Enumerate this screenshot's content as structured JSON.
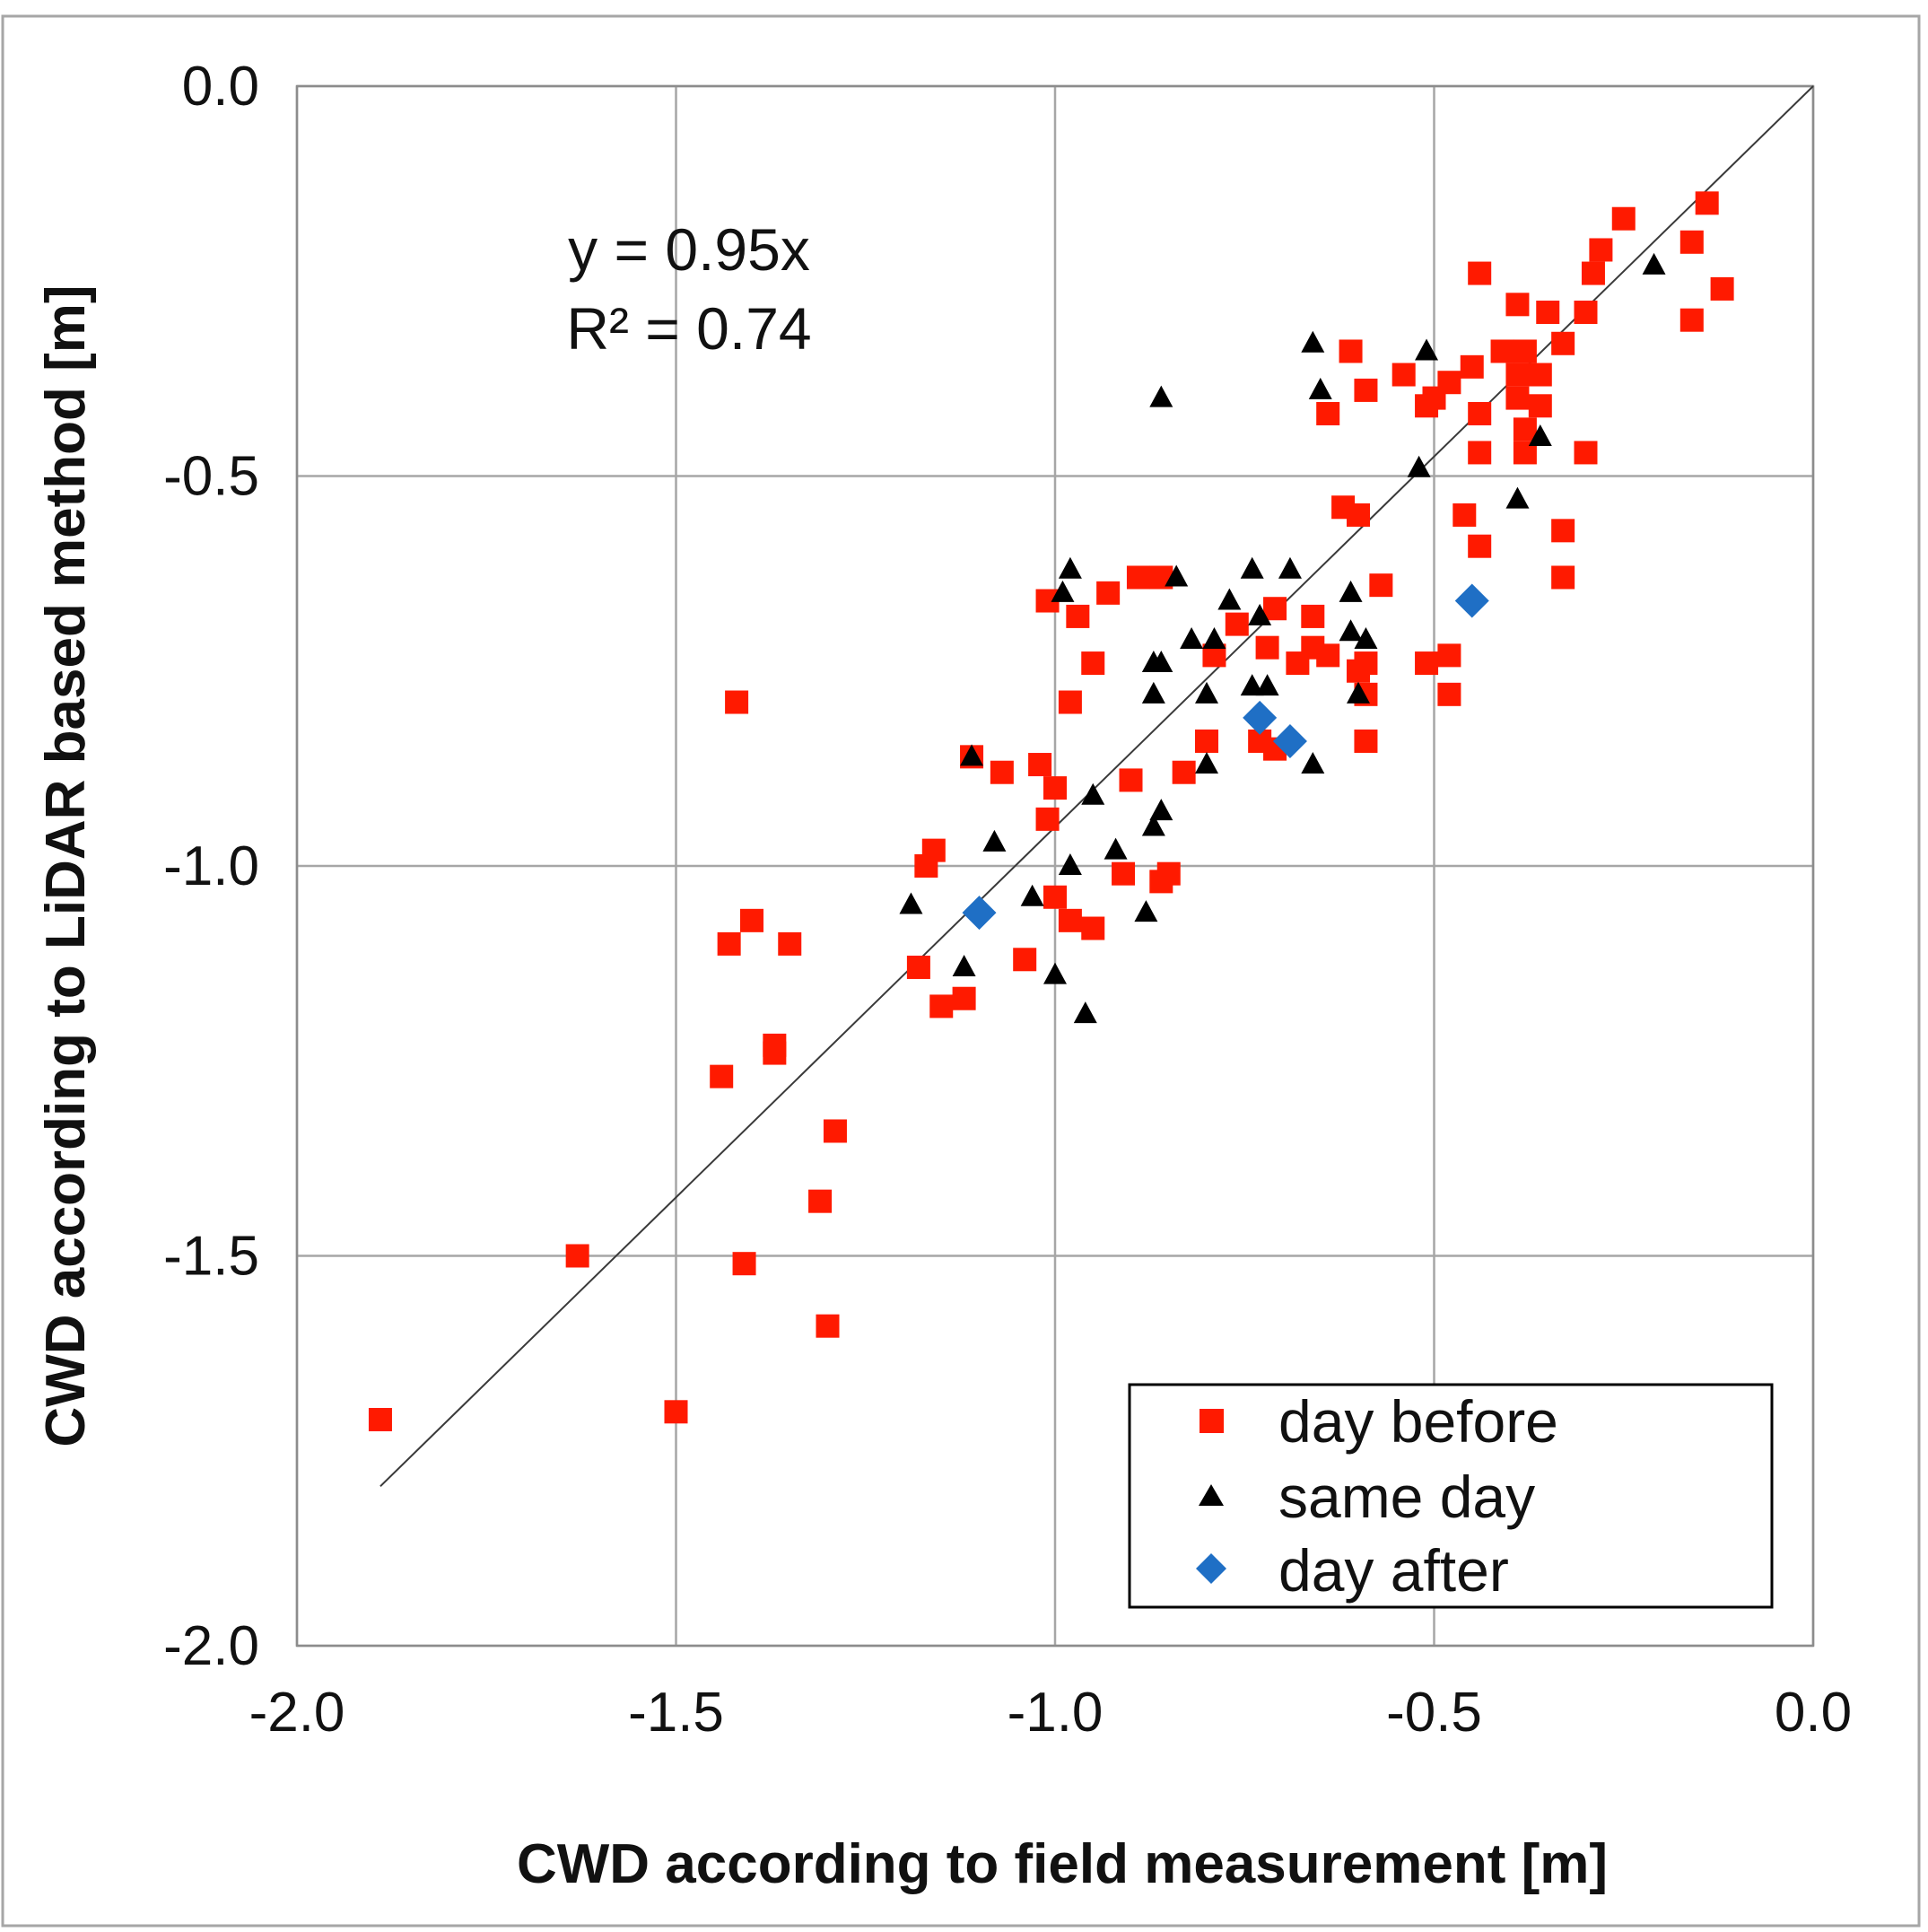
{
  "chart_data": {
    "type": "scatter",
    "xlabel": "CWD according to field measurement [m]",
    "ylabel": "CWD according to LiDAR based method [m]",
    "xlim": [
      -2.0,
      0.0
    ],
    "ylim": [
      -2.0,
      0.0
    ],
    "xticks": [
      "-2.0",
      "-1.5",
      "-1.0",
      "-0.5",
      "0.0"
    ],
    "yticks": [
      "0.0",
      "-0.5",
      "-1.0",
      "-1.5",
      "-2.0"
    ],
    "grid": true,
    "legend_position": "bottom-right",
    "annotation": {
      "equation": "y = 0.95x",
      "r2": "R² = 0.74"
    },
    "trendline": {
      "slope": 0.95,
      "x_range": [
        -1.89,
        0.0
      ]
    },
    "series": [
      {
        "name": "day before",
        "marker": "square",
        "color": "#ff1a00",
        "points": [
          [
            -1.89,
            -1.71
          ],
          [
            -1.63,
            -1.5
          ],
          [
            -1.5,
            -1.7
          ],
          [
            -1.42,
            -0.79
          ],
          [
            -1.43,
            -1.1
          ],
          [
            -1.4,
            -1.07
          ],
          [
            -1.35,
            -1.1
          ],
          [
            -1.37,
            -1.23
          ],
          [
            -1.37,
            -1.24
          ],
          [
            -1.44,
            -1.27
          ],
          [
            -1.41,
            -1.51
          ],
          [
            -1.31,
            -1.43
          ],
          [
            -1.3,
            -1.59
          ],
          [
            -1.29,
            -1.34
          ],
          [
            -1.18,
            -1.13
          ],
          [
            -1.17,
            -1.0
          ],
          [
            -1.16,
            -0.98
          ],
          [
            -1.15,
            -1.18
          ],
          [
            -1.12,
            -1.17
          ],
          [
            -1.11,
            -0.86
          ],
          [
            -1.07,
            -0.88
          ],
          [
            -1.04,
            -1.12
          ],
          [
            -1.02,
            -0.87
          ],
          [
            -1.01,
            -0.94
          ],
          [
            -1.0,
            -0.9
          ],
          [
            -1.0,
            -1.04
          ],
          [
            -1.01,
            -0.66
          ],
          [
            -0.98,
            -1.07
          ],
          [
            -0.98,
            -0.79
          ],
          [
            -0.97,
            -0.68
          ],
          [
            -0.95,
            -1.08
          ],
          [
            -0.95,
            -0.74
          ],
          [
            -0.93,
            -0.65
          ],
          [
            -0.91,
            -1.01
          ],
          [
            -0.9,
            -0.89
          ],
          [
            -0.89,
            -0.63
          ],
          [
            -0.86,
            -1.02
          ],
          [
            -0.85,
            -1.01
          ],
          [
            -0.86,
            -0.63
          ],
          [
            -0.83,
            -0.88
          ],
          [
            -0.8,
            -0.84
          ],
          [
            -0.79,
            -0.73
          ],
          [
            -0.76,
            -0.69
          ],
          [
            -0.73,
            -0.84
          ],
          [
            -0.71,
            -0.85
          ],
          [
            -0.72,
            -0.72
          ],
          [
            -0.71,
            -0.67
          ],
          [
            -0.68,
            -0.74
          ],
          [
            -0.66,
            -0.72
          ],
          [
            -0.66,
            -0.68
          ],
          [
            -0.64,
            -0.73
          ],
          [
            -0.64,
            -0.42
          ],
          [
            -0.62,
            -0.54
          ],
          [
            -0.6,
            -0.55
          ],
          [
            -0.61,
            -0.34
          ],
          [
            -0.59,
            -0.39
          ],
          [
            -0.6,
            -0.75
          ],
          [
            -0.59,
            -0.74
          ],
          [
            -0.59,
            -0.78
          ],
          [
            -0.59,
            -0.84
          ],
          [
            -0.57,
            -0.64
          ],
          [
            -0.54,
            -0.37
          ],
          [
            -0.51,
            -0.41
          ],
          [
            -0.5,
            -0.4
          ],
          [
            -0.48,
            -0.38
          ],
          [
            -0.51,
            -0.74
          ],
          [
            -0.48,
            -0.73
          ],
          [
            -0.48,
            -0.78
          ],
          [
            -0.46,
            -0.55
          ],
          [
            -0.45,
            -0.36
          ],
          [
            -0.44,
            -0.59
          ],
          [
            -0.44,
            -0.42
          ],
          [
            -0.44,
            -0.47
          ],
          [
            -0.44,
            -0.24
          ],
          [
            -0.41,
            -0.34
          ],
          [
            -0.39,
            -0.37
          ],
          [
            -0.39,
            -0.4
          ],
          [
            -0.39,
            -0.28
          ],
          [
            -0.38,
            -0.34
          ],
          [
            -0.38,
            -0.44
          ],
          [
            -0.38,
            -0.47
          ],
          [
            -0.36,
            -0.37
          ],
          [
            -0.36,
            -0.41
          ],
          [
            -0.35,
            -0.29
          ],
          [
            -0.33,
            -0.33
          ],
          [
            -0.33,
            -0.57
          ],
          [
            -0.33,
            -0.63
          ],
          [
            -0.3,
            -0.29
          ],
          [
            -0.3,
            -0.47
          ],
          [
            -0.29,
            -0.24
          ],
          [
            -0.28,
            -0.21
          ],
          [
            -0.25,
            -0.17
          ],
          [
            -0.16,
            -0.2
          ],
          [
            -0.16,
            -0.3
          ],
          [
            -0.14,
            -0.15
          ],
          [
            -0.12,
            -0.26
          ]
        ]
      },
      {
        "name": "same day",
        "marker": "triangle",
        "color": "#000000",
        "points": [
          [
            -1.19,
            -1.05
          ],
          [
            -1.12,
            -1.13
          ],
          [
            -1.11,
            -0.86
          ],
          [
            -1.08,
            -0.97
          ],
          [
            -1.03,
            -1.04
          ],
          [
            -1.0,
            -1.14
          ],
          [
            -0.99,
            -0.65
          ],
          [
            -0.98,
            -0.62
          ],
          [
            -0.98,
            -1.0
          ],
          [
            -0.96,
            -1.19
          ],
          [
            -0.95,
            -0.91
          ],
          [
            -0.92,
            -0.98
          ],
          [
            -0.88,
            -1.06
          ],
          [
            -0.87,
            -0.95
          ],
          [
            -0.86,
            -0.93
          ],
          [
            -0.87,
            -0.74
          ],
          [
            -0.86,
            -0.74
          ],
          [
            -0.86,
            -0.4
          ],
          [
            -0.87,
            -0.78
          ],
          [
            -0.84,
            -0.63
          ],
          [
            -0.82,
            -0.71
          ],
          [
            -0.79,
            -0.71
          ],
          [
            -0.8,
            -0.78
          ],
          [
            -0.8,
            -0.87
          ],
          [
            -0.77,
            -0.66
          ],
          [
            -0.74,
            -0.62
          ],
          [
            -0.74,
            -0.77
          ],
          [
            -0.73,
            -0.68
          ],
          [
            -0.72,
            -0.77
          ],
          [
            -0.69,
            -0.62
          ],
          [
            -0.66,
            -0.87
          ],
          [
            -0.66,
            -0.33
          ],
          [
            -0.65,
            -0.39
          ],
          [
            -0.61,
            -0.65
          ],
          [
            -0.61,
            -0.7
          ],
          [
            -0.6,
            -0.78
          ],
          [
            -0.59,
            -0.71
          ],
          [
            -0.52,
            -0.49
          ],
          [
            -0.51,
            -0.34
          ],
          [
            -0.39,
            -0.53
          ],
          [
            -0.36,
            -0.45
          ],
          [
            -0.21,
            -0.23
          ]
        ]
      },
      {
        "name": "day after",
        "marker": "diamond",
        "color": "#1f6fc5",
        "points": [
          [
            -1.1,
            -1.06
          ],
          [
            -0.73,
            -0.81
          ],
          [
            -0.69,
            -0.84
          ],
          [
            -0.45,
            -0.66
          ]
        ]
      }
    ]
  }
}
